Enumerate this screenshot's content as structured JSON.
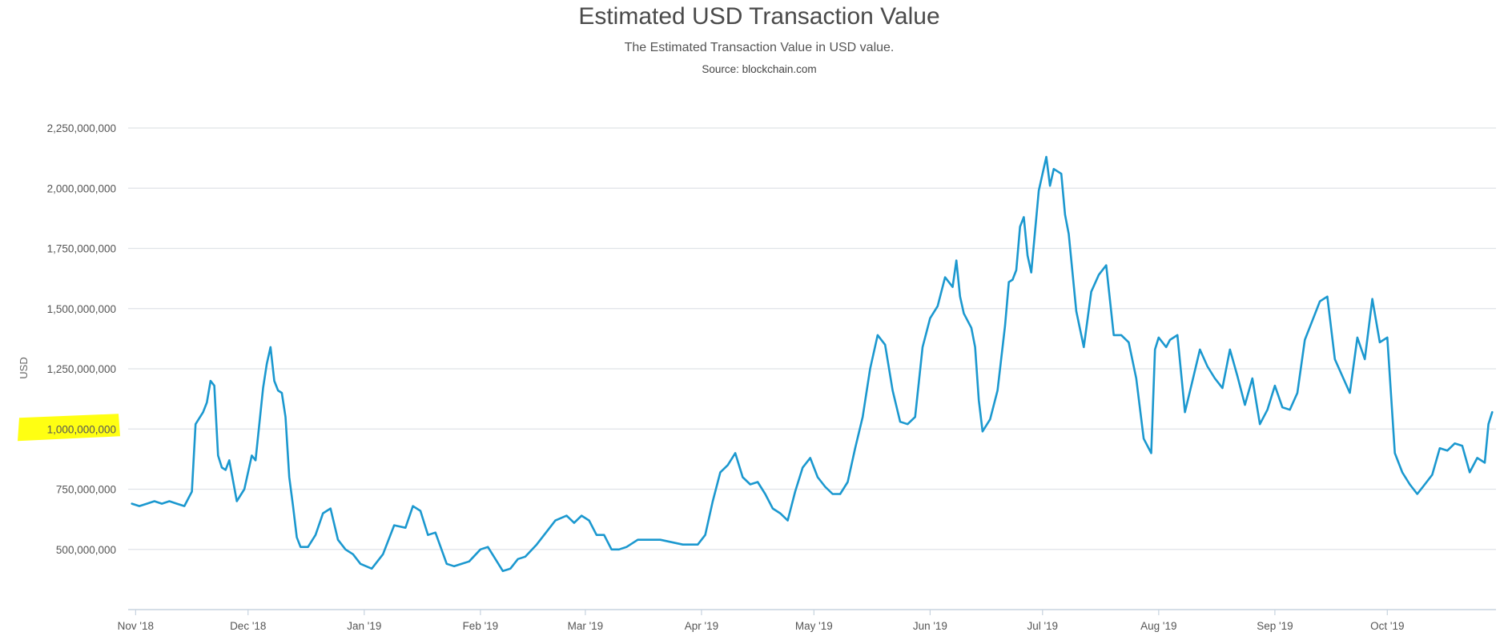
{
  "chart_data": {
    "type": "line",
    "title": "Estimated USD Transaction Value",
    "subtitle": "The Estimated Transaction Value in USD value.",
    "source": "Source: blockchain.com",
    "xlabel": "",
    "ylabel": "USD",
    "ylim": [
      250000000,
      2250000000
    ],
    "xlim": [
      "2018-10-30",
      "2019-10-30"
    ],
    "grid": true,
    "legend": "none",
    "line_color": "#1b98cf",
    "highlight_color": "#ffff00",
    "highlighted_tick": "1,000,000,000",
    "y_ticks": [
      {
        "value": 500000000,
        "label": "500,000,000"
      },
      {
        "value": 750000000,
        "label": "750,000,000"
      },
      {
        "value": 1000000000,
        "label": "1,000,000,000"
      },
      {
        "value": 1250000000,
        "label": "1,250,000,000"
      },
      {
        "value": 1500000000,
        "label": "1,500,000,000"
      },
      {
        "value": 1750000000,
        "label": "1,750,000,000"
      },
      {
        "value": 2000000000,
        "label": "2,000,000,000"
      },
      {
        "value": 2250000000,
        "label": "2,250,000,000"
      }
    ],
    "x_ticks": [
      {
        "date": "2018-11-01",
        "label": "Nov '18"
      },
      {
        "date": "2018-12-01",
        "label": "Dec '18"
      },
      {
        "date": "2019-01-01",
        "label": "Jan '19"
      },
      {
        "date": "2019-02-01",
        "label": "Feb '19"
      },
      {
        "date": "2019-03-01",
        "label": "Mar '19"
      },
      {
        "date": "2019-04-01",
        "label": "Apr '19"
      },
      {
        "date": "2019-05-01",
        "label": "May '19"
      },
      {
        "date": "2019-06-01",
        "label": "Jun '19"
      },
      {
        "date": "2019-07-01",
        "label": "Jul '19"
      },
      {
        "date": "2019-08-01",
        "label": "Aug '19"
      },
      {
        "date": "2019-09-01",
        "label": "Sep '19"
      },
      {
        "date": "2019-10-01",
        "label": "Oct '19"
      }
    ],
    "series": [
      {
        "x": [
          "2018-10-31",
          "2018-11-02",
          "2018-11-04",
          "2018-11-06",
          "2018-11-08",
          "2018-11-10",
          "2018-11-12",
          "2018-11-14",
          "2018-11-16",
          "2018-11-17",
          "2018-11-19",
          "2018-11-20",
          "2018-11-21",
          "2018-11-22",
          "2018-11-23",
          "2018-11-24",
          "2018-11-25",
          "2018-11-26",
          "2018-11-28",
          "2018-11-30",
          "2018-12-02",
          "2018-12-03",
          "2018-12-05",
          "2018-12-06",
          "2018-12-07",
          "2018-12-08",
          "2018-12-09",
          "2018-12-10",
          "2018-12-11",
          "2018-12-12",
          "2018-12-13",
          "2018-12-14",
          "2018-12-15",
          "2018-12-17",
          "2018-12-19",
          "2018-12-21",
          "2018-12-23",
          "2018-12-25",
          "2018-12-27",
          "2018-12-29",
          "2018-12-31",
          "2019-01-03",
          "2019-01-06",
          "2019-01-09",
          "2019-01-12",
          "2019-01-14",
          "2019-01-16",
          "2019-01-18",
          "2019-01-20",
          "2019-01-23",
          "2019-01-25",
          "2019-01-27",
          "2019-01-29",
          "2019-02-01",
          "2019-02-03",
          "2019-02-05",
          "2019-02-07",
          "2019-02-09",
          "2019-02-11",
          "2019-02-13",
          "2019-02-16",
          "2019-02-19",
          "2019-02-21",
          "2019-02-24",
          "2019-02-26",
          "2019-02-28",
          "2019-03-02",
          "2019-03-04",
          "2019-03-06",
          "2019-03-08",
          "2019-03-10",
          "2019-03-12",
          "2019-03-15",
          "2019-03-18",
          "2019-03-21",
          "2019-03-24",
          "2019-03-27",
          "2019-03-29",
          "2019-03-31",
          "2019-04-02",
          "2019-04-04",
          "2019-04-06",
          "2019-04-08",
          "2019-04-10",
          "2019-04-12",
          "2019-04-14",
          "2019-04-16",
          "2019-04-18",
          "2019-04-20",
          "2019-04-22",
          "2019-04-24",
          "2019-04-26",
          "2019-04-28",
          "2019-04-30",
          "2019-05-02",
          "2019-05-04",
          "2019-05-06",
          "2019-05-08",
          "2019-05-10",
          "2019-05-12",
          "2019-05-14",
          "2019-05-16",
          "2019-05-18",
          "2019-05-20",
          "2019-05-22",
          "2019-05-24",
          "2019-05-26",
          "2019-05-28",
          "2019-05-30",
          "2019-06-01",
          "2019-06-03",
          "2019-06-05",
          "2019-06-07",
          "2019-06-08",
          "2019-06-09",
          "2019-06-10",
          "2019-06-12",
          "2019-06-13",
          "2019-06-14",
          "2019-06-15",
          "2019-06-17",
          "2019-06-19",
          "2019-06-21",
          "2019-06-22",
          "2019-06-23",
          "2019-06-24",
          "2019-06-25",
          "2019-06-26",
          "2019-06-27",
          "2019-06-28",
          "2019-06-30",
          "2019-07-02",
          "2019-07-03",
          "2019-07-04",
          "2019-07-05",
          "2019-07-06",
          "2019-07-07",
          "2019-07-08",
          "2019-07-10",
          "2019-07-12",
          "2019-07-14",
          "2019-07-16",
          "2019-07-18",
          "2019-07-20",
          "2019-07-22",
          "2019-07-24",
          "2019-07-26",
          "2019-07-28",
          "2019-07-30",
          "2019-07-31",
          "2019-08-01",
          "2019-08-03",
          "2019-08-04",
          "2019-08-06",
          "2019-08-08",
          "2019-08-10",
          "2019-08-12",
          "2019-08-14",
          "2019-08-16",
          "2019-08-18",
          "2019-08-20",
          "2019-08-22",
          "2019-08-24",
          "2019-08-26",
          "2019-08-28",
          "2019-08-30",
          "2019-09-01",
          "2019-09-03",
          "2019-09-05",
          "2019-09-07",
          "2019-09-09",
          "2019-09-11",
          "2019-09-13",
          "2019-09-15",
          "2019-09-17",
          "2019-09-19",
          "2019-09-21",
          "2019-09-23",
          "2019-09-25",
          "2019-09-27",
          "2019-09-29",
          "2019-10-01",
          "2019-10-03",
          "2019-10-05",
          "2019-10-07",
          "2019-10-09",
          "2019-10-11",
          "2019-10-13",
          "2019-10-15",
          "2019-10-17",
          "2019-10-19",
          "2019-10-21",
          "2019-10-23",
          "2019-10-25",
          "2019-10-27",
          "2019-10-28",
          "2019-10-29"
        ],
        "values": [
          690000000,
          680000000,
          690000000,
          700000000,
          690000000,
          700000000,
          690000000,
          680000000,
          740000000,
          1020000000,
          1070000000,
          1110000000,
          1200000000,
          1180000000,
          890000000,
          840000000,
          830000000,
          870000000,
          700000000,
          750000000,
          890000000,
          870000000,
          1170000000,
          1270000000,
          1340000000,
          1200000000,
          1160000000,
          1150000000,
          1050000000,
          800000000,
          680000000,
          550000000,
          510000000,
          510000000,
          560000000,
          650000000,
          670000000,
          540000000,
          500000000,
          480000000,
          440000000,
          420000000,
          480000000,
          600000000,
          590000000,
          680000000,
          660000000,
          560000000,
          570000000,
          440000000,
          430000000,
          440000000,
          450000000,
          500000000,
          510000000,
          460000000,
          410000000,
          420000000,
          460000000,
          470000000,
          520000000,
          580000000,
          620000000,
          640000000,
          610000000,
          640000000,
          620000000,
          560000000,
          560000000,
          500000000,
          500000000,
          510000000,
          540000000,
          540000000,
          540000000,
          530000000,
          520000000,
          520000000,
          520000000,
          560000000,
          700000000,
          820000000,
          850000000,
          900000000,
          800000000,
          770000000,
          780000000,
          730000000,
          670000000,
          650000000,
          620000000,
          740000000,
          840000000,
          880000000,
          800000000,
          760000000,
          730000000,
          730000000,
          780000000,
          920000000,
          1050000000,
          1250000000,
          1390000000,
          1350000000,
          1160000000,
          1030000000,
          1020000000,
          1050000000,
          1340000000,
          1460000000,
          1510000000,
          1630000000,
          1590000000,
          1700000000,
          1550000000,
          1480000000,
          1420000000,
          1340000000,
          1120000000,
          990000000,
          1040000000,
          1160000000,
          1430000000,
          1610000000,
          1620000000,
          1660000000,
          1840000000,
          1880000000,
          1720000000,
          1650000000,
          1990000000,
          2130000000,
          2010000000,
          2080000000,
          2070000000,
          2060000000,
          1890000000,
          1810000000,
          1490000000,
          1340000000,
          1570000000,
          1640000000,
          1680000000,
          1390000000,
          1390000000,
          1360000000,
          1210000000,
          960000000,
          900000000,
          1330000000,
          1380000000,
          1340000000,
          1370000000,
          1390000000,
          1070000000,
          1200000000,
          1330000000,
          1260000000,
          1210000000,
          1170000000,
          1330000000,
          1220000000,
          1100000000,
          1210000000,
          1020000000,
          1080000000,
          1180000000,
          1090000000,
          1080000000,
          1150000000,
          1370000000,
          1450000000,
          1530000000,
          1550000000,
          1290000000,
          1220000000,
          1150000000,
          1380000000,
          1290000000,
          1540000000,
          1360000000,
          1380000000,
          900000000,
          820000000,
          770000000,
          730000000,
          770000000,
          810000000,
          920000000,
          910000000,
          940000000,
          930000000,
          820000000,
          880000000,
          860000000,
          1020000000,
          1070000000
        ]
      }
    ]
  }
}
